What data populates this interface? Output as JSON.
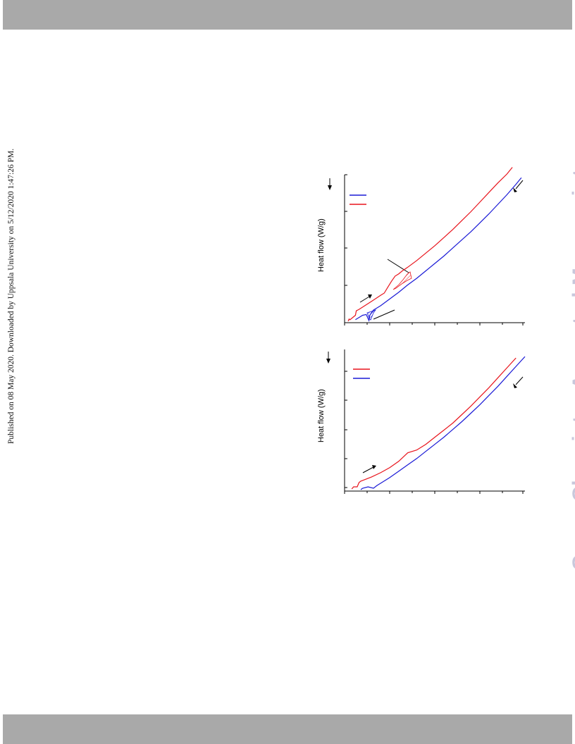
{
  "published_note": "Published on 08 May 2020. Downloaded by Uppsala University on 5/12/2020 1:47:26 PM.",
  "watermark": "Green Chemistry Accepted Manuscript",
  "colors": {
    "band": "#a9a9a9",
    "red": "#e8141c",
    "blue": "#1a1ad6",
    "watermark": "#c8c8dc"
  },
  "chart_data": [
    {
      "type": "line",
      "ylabel": "Heat flow (W/g)",
      "series": [
        {
          "color": "#1a1ad6",
          "x": [
            0.06,
            0.08,
            0.1,
            0.12,
            0.135,
            0.14,
            0.145,
            0.15,
            0.16,
            0.18,
            0.2,
            0.25,
            0.3,
            0.35,
            0.4,
            0.45,
            0.5,
            0.55,
            0.6,
            0.65,
            0.7,
            0.75,
            0.8,
            0.85,
            0.9,
            0.95,
            0.98
          ],
          "y": [
            0.02,
            0.035,
            0.05,
            0.055,
            0.015,
            0.05,
            0.06,
            0.07,
            0.085,
            0.1,
            0.115,
            0.16,
            0.205,
            0.255,
            0.3,
            0.35,
            0.4,
            0.45,
            0.505,
            0.56,
            0.615,
            0.675,
            0.735,
            0.8,
            0.865,
            0.935,
            0.98
          ]
        },
        {
          "color": "#e8141c",
          "x": [
            0.02,
            0.025,
            0.03,
            0.05,
            0.06,
            0.065,
            0.08,
            0.1,
            0.15,
            0.2,
            0.22,
            0.24,
            0.26,
            0.28,
            0.3,
            0.32,
            0.35,
            0.4,
            0.45,
            0.5,
            0.55,
            0.6,
            0.65,
            0.7,
            0.75,
            0.8,
            0.85,
            0.9,
            0.93
          ],
          "y": [
            0.01,
            0.025,
            0.02,
            0.04,
            0.05,
            0.08,
            0.09,
            0.105,
            0.145,
            0.185,
            0.2,
            0.24,
            0.28,
            0.315,
            0.33,
            0.35,
            0.375,
            0.42,
            0.47,
            0.52,
            0.575,
            0.63,
            0.69,
            0.75,
            0.815,
            0.88,
            0.945,
            1.005,
            1.05
          ]
        }
      ],
      "ylim": [
        0,
        1
      ],
      "xlim": [
        0,
        1
      ]
    },
    {
      "type": "line",
      "ylabel": "Heat flow (W/g)",
      "series": [
        {
          "color": "#e8141c",
          "x": [
            0.04,
            0.05,
            0.07,
            0.08,
            0.09,
            0.1,
            0.15,
            0.2,
            0.25,
            0.3,
            0.35,
            0.4,
            0.45,
            0.5,
            0.55,
            0.6,
            0.65,
            0.7,
            0.75,
            0.8,
            0.85,
            0.9,
            0.95
          ],
          "y": [
            0.015,
            0.03,
            0.03,
            0.06,
            0.07,
            0.075,
            0.1,
            0.13,
            0.165,
            0.21,
            0.27,
            0.29,
            0.33,
            0.38,
            0.43,
            0.48,
            0.54,
            0.6,
            0.665,
            0.73,
            0.8,
            0.87,
            0.94
          ]
        },
        {
          "color": "#1a1ad6",
          "x": [
            0.09,
            0.1,
            0.13,
            0.16,
            0.18,
            0.2,
            0.25,
            0.3,
            0.35,
            0.4,
            0.45,
            0.5,
            0.55,
            0.6,
            0.65,
            0.7,
            0.75,
            0.8,
            0.85,
            0.9,
            0.95,
            1.0
          ],
          "y": [
            0.01,
            0.02,
            0.03,
            0.02,
            0.04,
            0.055,
            0.095,
            0.14,
            0.185,
            0.23,
            0.28,
            0.33,
            0.38,
            0.435,
            0.49,
            0.55,
            0.61,
            0.675,
            0.74,
            0.81,
            0.88,
            0.95
          ]
        }
      ],
      "ylim": [
        0,
        1
      ],
      "xlim": [
        0,
        1
      ]
    }
  ]
}
